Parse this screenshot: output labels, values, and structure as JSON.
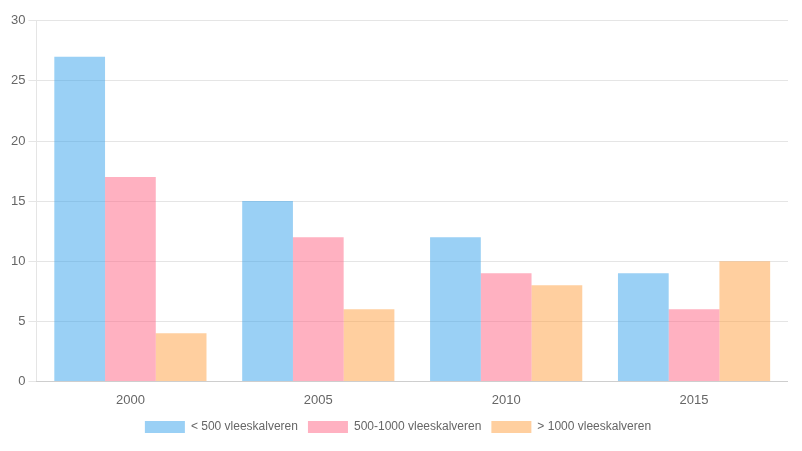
{
  "chart_data": {
    "type": "bar",
    "categories": [
      "2000",
      "2005",
      "2010",
      "2015"
    ],
    "series": [
      {
        "name": "< 500 vleeskalveren",
        "values": [
          27,
          15,
          12,
          9
        ]
      },
      {
        "name": "500-1000 vleeskalveren",
        "values": [
          17,
          12,
          9,
          6
        ]
      },
      {
        "name": "> 1000 vleeskalveren",
        "values": [
          4,
          6,
          8,
          10
        ]
      }
    ],
    "ylim": [
      0,
      30
    ],
    "yticks": [
      0,
      5,
      10,
      15,
      20,
      25,
      30
    ],
    "grid": true,
    "legend": "bottom"
  }
}
